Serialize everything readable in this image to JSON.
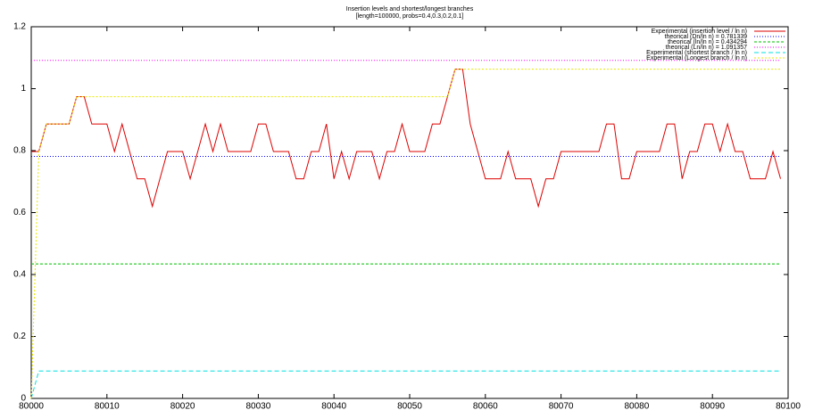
{
  "chart_data": {
    "type": "line",
    "title": "Insertion levels and shortest/longest branches",
    "subtitle": "[length=100000, probs=0.4,0.3,0.2,0.1]",
    "xlim": [
      80000,
      80100
    ],
    "xticks": [
      80000,
      80010,
      80020,
      80030,
      80040,
      80050,
      80060,
      80070,
      80080,
      80090,
      80100
    ],
    "ylim": [
      0,
      1.2
    ],
    "yticks": [
      0,
      0.2,
      0.4,
      0.6,
      0.8,
      1,
      1.2
    ],
    "grid": false,
    "legend": "top-right",
    "series": [
      {
        "name": "Experimental (insertion level / ln n)",
        "color": "#dd0000",
        "dash": "none",
        "x": [
          80000,
          80001,
          80002,
          80003,
          80004,
          80005,
          80006,
          80007,
          80008,
          80009,
          80010,
          80011,
          80012,
          80013,
          80014,
          80015,
          80016,
          80017,
          80018,
          80019,
          80020,
          80021,
          80022,
          80023,
          80024,
          80025,
          80026,
          80027,
          80028,
          80029,
          80030,
          80031,
          80032,
          80033,
          80034,
          80035,
          80036,
          80037,
          80038,
          80039,
          80040,
          80041,
          80042,
          80043,
          80044,
          80045,
          80046,
          80047,
          80048,
          80049,
          80050,
          80051,
          80052,
          80053,
          80054,
          80055,
          80056,
          80057,
          80058,
          80059,
          80060,
          80061,
          80062,
          80063,
          80064,
          80065,
          80066,
          80067,
          80068,
          80069,
          80070,
          80071,
          80072,
          80073,
          80074,
          80075,
          80076,
          80077,
          80078,
          80079,
          80080,
          80081,
          80082,
          80083,
          80084,
          80085,
          80086,
          80087,
          80088,
          80089,
          80090,
          80091,
          80092,
          80093,
          80094,
          80095,
          80096,
          80097,
          80098,
          80099
        ],
        "values": [
          0.797,
          0.797,
          0.886,
          0.886,
          0.886,
          0.886,
          0.974,
          0.974,
          0.886,
          0.886,
          0.886,
          0.797,
          0.886,
          0.797,
          0.709,
          0.709,
          0.62,
          0.709,
          0.797,
          0.797,
          0.797,
          0.709,
          0.797,
          0.886,
          0.797,
          0.886,
          0.797,
          0.797,
          0.797,
          0.797,
          0.886,
          0.886,
          0.797,
          0.797,
          0.797,
          0.709,
          0.709,
          0.797,
          0.797,
          0.886,
          0.709,
          0.797,
          0.709,
          0.797,
          0.797,
          0.797,
          0.709,
          0.797,
          0.797,
          0.886,
          0.797,
          0.797,
          0.797,
          0.886,
          0.886,
          0.974,
          1.063,
          1.063,
          0.886,
          0.797,
          0.709,
          0.709,
          0.709,
          0.797,
          0.709,
          0.709,
          0.709,
          0.62,
          0.709,
          0.709,
          0.797,
          0.797,
          0.797,
          0.797,
          0.797,
          0.797,
          0.886,
          0.886,
          0.709,
          0.709,
          0.797,
          0.797,
          0.797,
          0.797,
          0.886,
          0.886,
          0.709,
          0.797,
          0.797,
          0.886,
          0.886,
          0.797,
          0.886,
          0.797,
          0.797,
          0.709,
          0.709,
          0.709,
          0.797,
          0.709
        ]
      },
      {
        "name": "theorical (Dn/ln n) = 0.781339",
        "color": "#0000ff",
        "dash": "1,2",
        "x": [
          80000,
          80099
        ],
        "values": [
          0.781339,
          0.781339
        ]
      },
      {
        "name": "theorical (ln/ln n) = 0.434294",
        "color": "#00c000",
        "dash": "3,2",
        "x": [
          80000,
          80099
        ],
        "values": [
          0.434294,
          0.434294
        ]
      },
      {
        "name": "theorical (Ln/ln n) = 1.091357",
        "color": "#ff00ff",
        "dash": "1,2",
        "x": [
          80000,
          80099
        ],
        "values": [
          1.091357,
          1.091357
        ]
      },
      {
        "name": "Experimental (shortest branch / ln n)",
        "color": "#00e0e0",
        "dash": "5,3",
        "x": [
          80000,
          80001,
          80099
        ],
        "values": [
          0,
          0.0886,
          0.0886
        ]
      },
      {
        "name": "Experimental (Longest branch / ln n)",
        "color": "#e8e800",
        "dash": "2,2",
        "x": [
          80000,
          80001,
          80002,
          80005,
          80006,
          80055,
          80056,
          80099
        ],
        "values": [
          0,
          0.797,
          0.886,
          0.886,
          0.974,
          0.974,
          1.063,
          1.063
        ]
      }
    ]
  }
}
